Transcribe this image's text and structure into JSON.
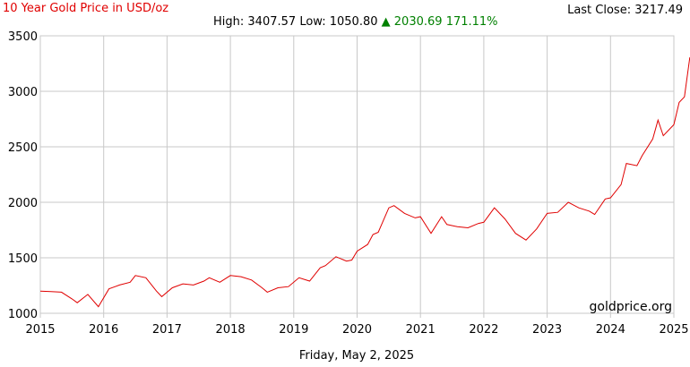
{
  "header": {
    "title": "10 Year Gold Price in USD/oz",
    "last_close_label": "Last Close:",
    "last_close_value": "3217.49",
    "high_label": "High:",
    "high_value": "3407.57",
    "low_label": "Low:",
    "low_value": "1050.80",
    "change_arrow": "▲",
    "change_value": "2030.69",
    "change_percent": "171.11%"
  },
  "footer": {
    "date": "Friday, May 2, 2025",
    "watermark": "goldprice.org"
  },
  "colors": {
    "line": "#e00000",
    "grid": "#c8c8c8",
    "change_up": "#008000"
  },
  "chart_data": {
    "type": "line",
    "title": "10 Year Gold Price in USD/oz",
    "xlabel": "",
    "ylabel": "",
    "xlim": [
      2015,
      2025
    ],
    "ylim": [
      1000,
      3500
    ],
    "x_ticks": [
      "2015",
      "2016",
      "2017",
      "2018",
      "2019",
      "2020",
      "2021",
      "2022",
      "2023",
      "2024",
      "2025"
    ],
    "y_ticks": [
      "1000",
      "1500",
      "2000",
      "2500",
      "3000",
      "3500"
    ],
    "grid": true,
    "series": [
      {
        "x": [
          "2015-01",
          "2015-03",
          "2015-05",
          "2015-07",
          "2015-08",
          "2015-10",
          "2015-12",
          "2016-02",
          "2016-04",
          "2016-06",
          "2016-07",
          "2016-09",
          "2016-11",
          "2016-12",
          "2017-02",
          "2017-04",
          "2017-06",
          "2017-08",
          "2017-09",
          "2017-11",
          "2018-01",
          "2018-03",
          "2018-05",
          "2018-07",
          "2018-08",
          "2018-10",
          "2018-12",
          "2019-02",
          "2019-04",
          "2019-06",
          "2019-07",
          "2019-09",
          "2019-11",
          "2019-12",
          "2020-01",
          "2020-03",
          "2020-04",
          "2020-05",
          "2020-07",
          "2020-08",
          "2020-10",
          "2020-12",
          "2021-01",
          "2021-03",
          "2021-05",
          "2021-06",
          "2021-08",
          "2021-10",
          "2021-12",
          "2022-01",
          "2022-03",
          "2022-05",
          "2022-07",
          "2022-09",
          "2022-11",
          "2023-01",
          "2023-03",
          "2023-05",
          "2023-07",
          "2023-09",
          "2023-10",
          "2023-12",
          "2024-01",
          "2024-03",
          "2024-04",
          "2024-06",
          "2024-07",
          "2024-09",
          "2024-10",
          "2024-11",
          "2025-01",
          "2025-02",
          "2025-03",
          "2025-04",
          "2025-05"
        ],
        "values": [
          1200,
          1195,
          1190,
          1130,
          1095,
          1170,
          1060,
          1220,
          1255,
          1280,
          1340,
          1320,
          1200,
          1150,
          1230,
          1265,
          1255,
          1290,
          1320,
          1280,
          1340,
          1330,
          1300,
          1230,
          1190,
          1230,
          1240,
          1320,
          1290,
          1410,
          1430,
          1510,
          1470,
          1480,
          1560,
          1620,
          1710,
          1730,
          1950,
          1970,
          1900,
          1860,
          1870,
          1720,
          1870,
          1800,
          1780,
          1770,
          1810,
          1820,
          1950,
          1850,
          1720,
          1660,
          1760,
          1900,
          1910,
          2000,
          1950,
          1920,
          1890,
          2030,
          2040,
          2160,
          2350,
          2330,
          2420,
          2570,
          2740,
          2600,
          2700,
          2900,
          2950,
          3300,
          3240
        ]
      }
    ]
  }
}
